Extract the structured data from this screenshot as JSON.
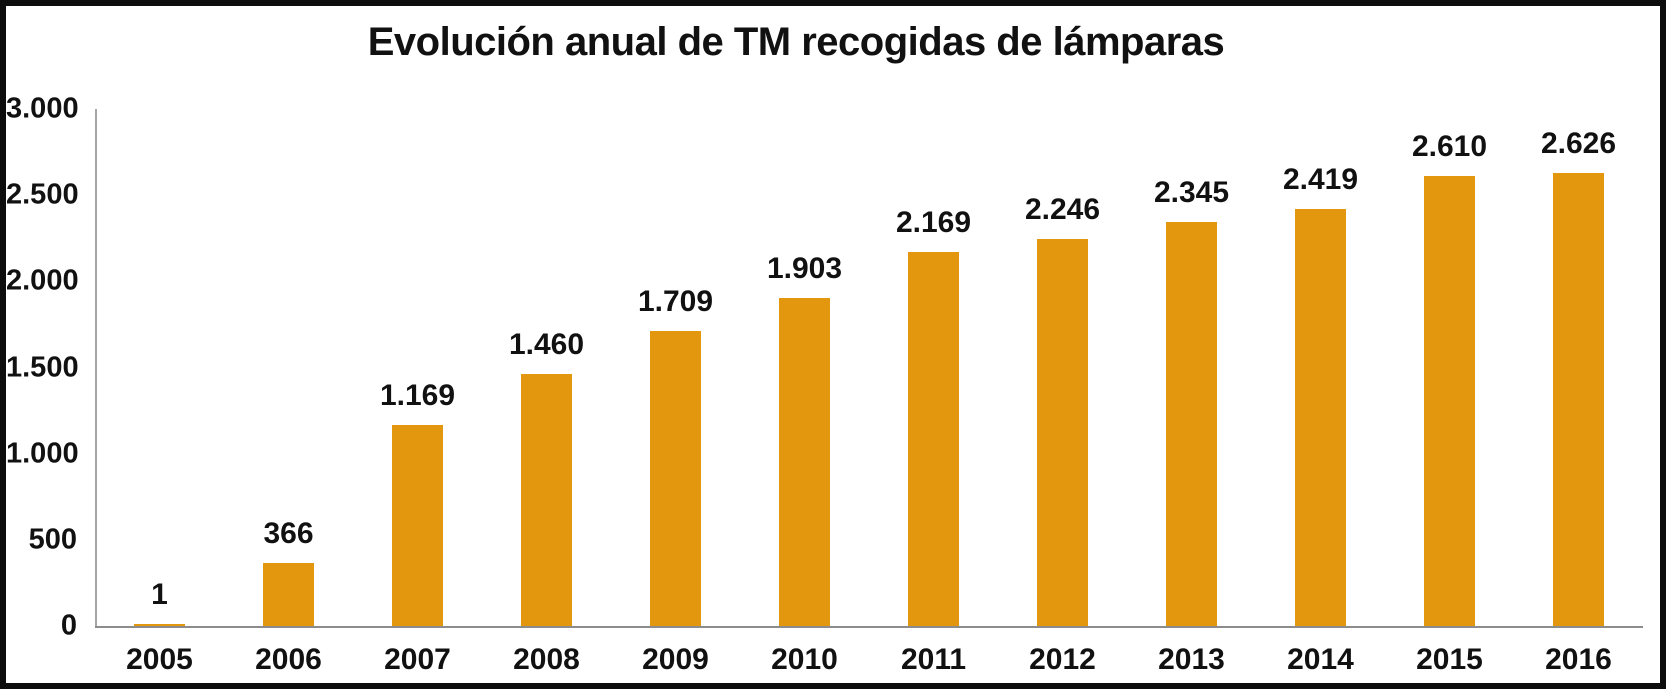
{
  "chart_data": {
    "type": "bar",
    "title": "Evolución anual de TM recogidas de lámparas",
    "categories": [
      "2005",
      "2006",
      "2007",
      "2008",
      "2009",
      "2010",
      "2011",
      "2012",
      "2013",
      "2014",
      "2015",
      "2016"
    ],
    "values": [
      1,
      366,
      1169,
      1460,
      1709,
      1903,
      2169,
      2246,
      2345,
      2419,
      2610,
      2626
    ],
    "value_labels": [
      "1",
      "366",
      "1.169",
      "1.460",
      "1.709",
      "1.903",
      "2.169",
      "2.246",
      "2.345",
      "2.419",
      "2.610",
      "2.626"
    ],
    "xlabel": "",
    "ylabel": "",
    "ylim": [
      0,
      3000
    ],
    "y_ticks": [
      0,
      500,
      1000,
      1500,
      2000,
      2500,
      3000
    ],
    "y_tick_labels": [
      "0",
      "500",
      "1.000",
      "1.500",
      "2.000",
      "2.500",
      "3.000"
    ],
    "grid": false,
    "legend": false,
    "bar_color": "#e2970e",
    "axis_line_color": "#a6a6a6",
    "text_color": "#111111",
    "frame_border_color": "#0d0d0d"
  }
}
